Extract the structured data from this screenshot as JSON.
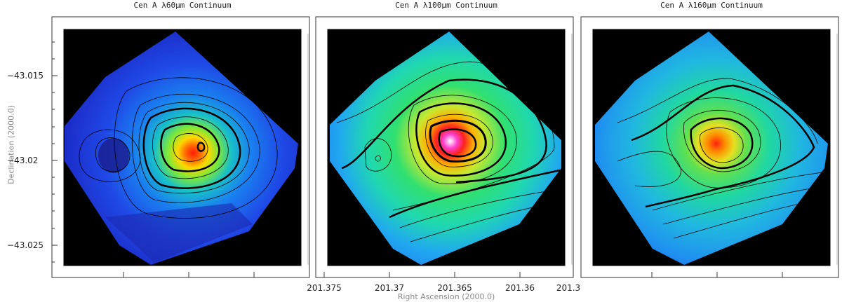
{
  "panels": [
    {
      "title": "Cen A λ60μm Continuum"
    },
    {
      "title": "Cen A λ100μm Continuum"
    },
    {
      "title": "Cen A λ160μm Continuum"
    }
  ],
  "axes": {
    "ylabel": "Declination (2000.0)",
    "xlabel": "Right Ascension (2000.0)",
    "yticks": [
      "−43.015",
      "−43.02",
      "−43.025"
    ],
    "xticks": [
      "201.375",
      "201.37",
      "201.365",
      "201.36",
      "201.3"
    ]
  },
  "colors": {
    "background": "#000000",
    "low": "#1e3cf0",
    "mid": "#2ee06a",
    "high": "#ff2010",
    "peak": "#ffffff",
    "contour": "#000000"
  }
}
